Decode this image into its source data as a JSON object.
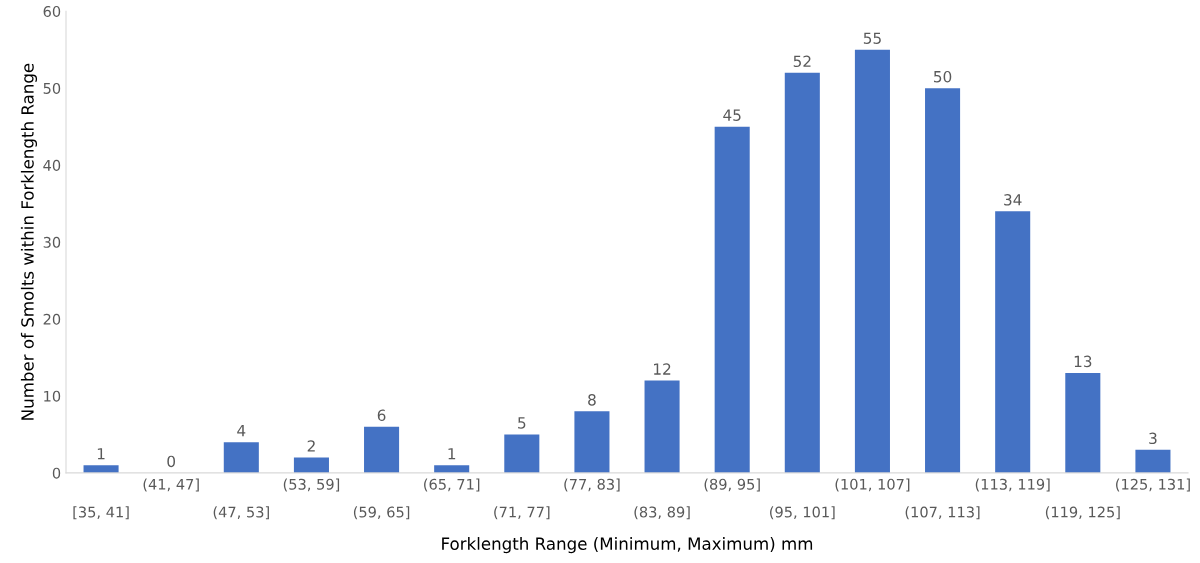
{
  "chart_data": {
    "type": "bar",
    "xlabel": "Forklength Range (Minimum, Maximum) mm",
    "ylabel": "Number of Smolts within Forklength Range",
    "categories": [
      "[35, 41]",
      "(41, 47]",
      "(47, 53]",
      "(53, 59]",
      "(59, 65]",
      "(65, 71]",
      "(71, 77]",
      "(77, 83]",
      "(83, 89]",
      "(89, 95]",
      "(95, 101]",
      "(101, 107]",
      "(107, 113]",
      "(113, 119]",
      "(119, 125]",
      "(125, 131]"
    ],
    "values": [
      1,
      0,
      4,
      2,
      6,
      1,
      5,
      8,
      12,
      45,
      52,
      55,
      50,
      34,
      13,
      3
    ],
    "color": "#4472c4",
    "ylim": [
      0,
      60
    ],
    "yticks": [
      0,
      10,
      20,
      30,
      40,
      50,
      60
    ],
    "grid": false,
    "data_labels": true
  }
}
